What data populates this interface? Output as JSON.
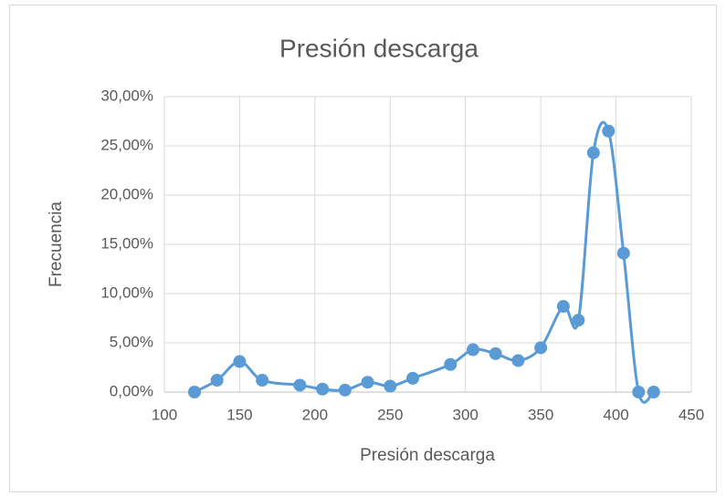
{
  "chart_data": {
    "type": "scatter",
    "title": "Presión descarga",
    "x_label": "Presión descarga",
    "y_label": "Frecuencia",
    "x": [
      120,
      135,
      150,
      165,
      190,
      205,
      220,
      235,
      250,
      265,
      290,
      305,
      320,
      335,
      350,
      365,
      375,
      385,
      395,
      405,
      415,
      425
    ],
    "values": [
      0,
      1.2,
      3.1,
      1.2,
      0.7,
      0.3,
      0.2,
      1.0,
      0.6,
      1.4,
      2.8,
      4.3,
      3.9,
      3.2,
      4.5,
      8.7,
      7.3,
      24.3,
      26.5,
      14.1,
      0,
      0
    ],
    "color": "#5b9bd5",
    "smooth": true,
    "grid": true,
    "xlim": [
      100,
      450
    ],
    "xticks": [
      100,
      150,
      200,
      250,
      300,
      350,
      400,
      450
    ],
    "ylim": [
      0,
      30
    ],
    "yticks": [
      {
        "value": 0,
        "label": "0,00%"
      },
      {
        "value": 5,
        "label": "5,00%"
      },
      {
        "value": 10,
        "label": "10,00%"
      },
      {
        "value": 15,
        "label": "15,00%"
      },
      {
        "value": 20,
        "label": "20,00%"
      },
      {
        "value": 25,
        "label": "25,00%"
      },
      {
        "value": 30,
        "label": "30,00%"
      }
    ]
  }
}
